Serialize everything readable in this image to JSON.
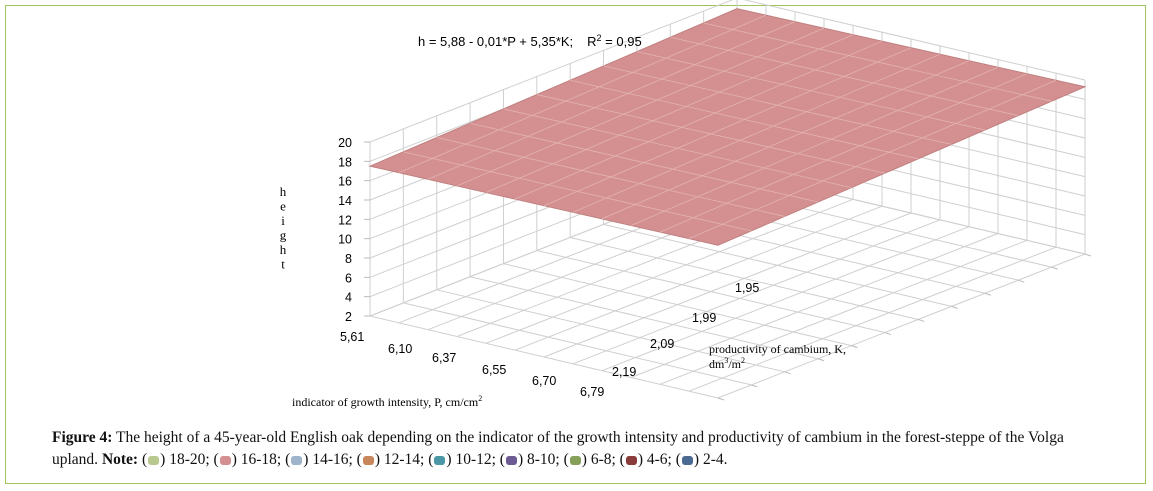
{
  "chart_data": {
    "type": "surface3d",
    "title": "h = 5,88 - 0,01*P + 5,35*K;",
    "r2_label": "R",
    "r2_sup": "2",
    "r2_value": " = 0,95",
    "equation": {
      "intercept": 5.88,
      "coef_P": -0.01,
      "coef_K": 5.35,
      "r2": 0.95
    },
    "zlabel_letters": [
      "h",
      "e",
      "i",
      "g",
      "h",
      "t"
    ],
    "zlim": [
      2,
      20
    ],
    "z_ticks": [
      "2",
      "4",
      "6",
      "8",
      "10",
      "12",
      "14",
      "16",
      "18",
      "20"
    ],
    "x_label": "indicator of growth intensity, P, cm/cm",
    "x_label_sup": "2",
    "x_ticks": [
      "5,61",
      "6,10",
      "6,37",
      "6,55",
      "6,70",
      "6,79"
    ],
    "y_label_line1": "productivity of cambium, K,",
    "y_label_line2_a": "dm",
    "y_label_line2_sup1": "3",
    "y_label_line2_b": "/m",
    "y_label_line2_sup2": "2",
    "y_ticks": [
      "1,95",
      "1,99",
      "2,09",
      "2,19"
    ],
    "surface_level": 17.5,
    "surface_color": "#d49090"
  },
  "caption": {
    "label": "Figure 4:",
    "text": " The height of a 45-year-old English oak depending on the indicator of the growth intensity and productivity of cambium in the forest-steppe of the Volga upland. ",
    "note_label": "Note:",
    "legend": [
      {
        "color": "#b9c98e",
        "text": "18-20;"
      },
      {
        "color": "#d49090",
        "text": "16-18;"
      },
      {
        "color": "#9fb3cc",
        "text": "14-16;"
      },
      {
        "color": "#c8875a",
        "text": "12-14;"
      },
      {
        "color": "#4c97a6",
        "text": "10-12;"
      },
      {
        "color": "#6c5a93",
        "text": "8-10;"
      },
      {
        "color": "#86a05a",
        "text": "6-8;"
      },
      {
        "color": "#8b3a3a",
        "text": "4-6;"
      },
      {
        "color": "#4a6a92",
        "text": "2-4."
      }
    ]
  }
}
